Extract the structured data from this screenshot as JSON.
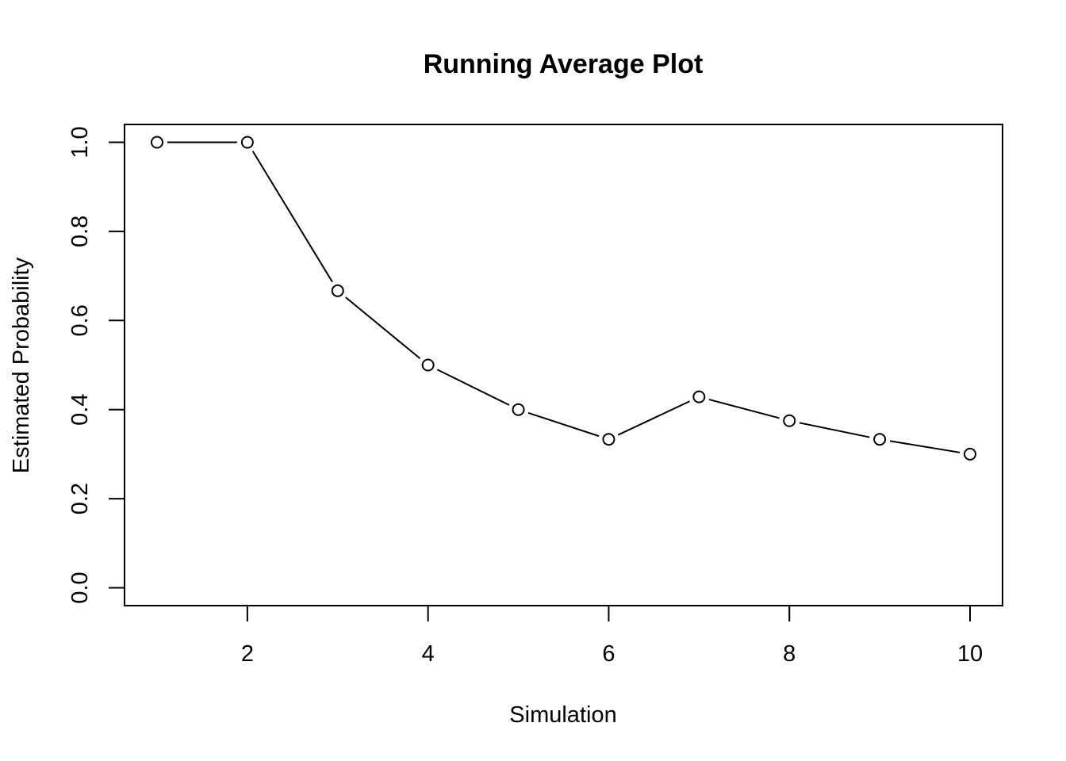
{
  "chart_data": {
    "type": "line",
    "plot_style": "both",
    "title": "Running Average Plot",
    "xlabel": "Simulation",
    "ylabel": "Estimated Probability",
    "x": [
      1,
      2,
      3,
      4,
      5,
      6,
      7,
      8,
      9,
      10
    ],
    "series": [
      {
        "values": [
          1.0,
          1.0,
          0.6667,
          0.5,
          0.4,
          0.3333,
          0.4286,
          0.375,
          0.3333,
          0.3
        ]
      }
    ],
    "xlim": [
      0.64,
      10.36
    ],
    "ylim": [
      -0.04,
      1.04
    ],
    "xticks": [
      2,
      4,
      6,
      8,
      10
    ],
    "xtick_labels": [
      "2",
      "4",
      "6",
      "8",
      "10"
    ],
    "yticks": [
      0.0,
      0.2,
      0.4,
      0.6,
      0.8,
      1.0
    ],
    "ytick_labels": [
      "0.0",
      "0.2",
      "0.4",
      "0.6",
      "0.8",
      "1.0"
    ],
    "grid": false,
    "legend": "none"
  }
}
